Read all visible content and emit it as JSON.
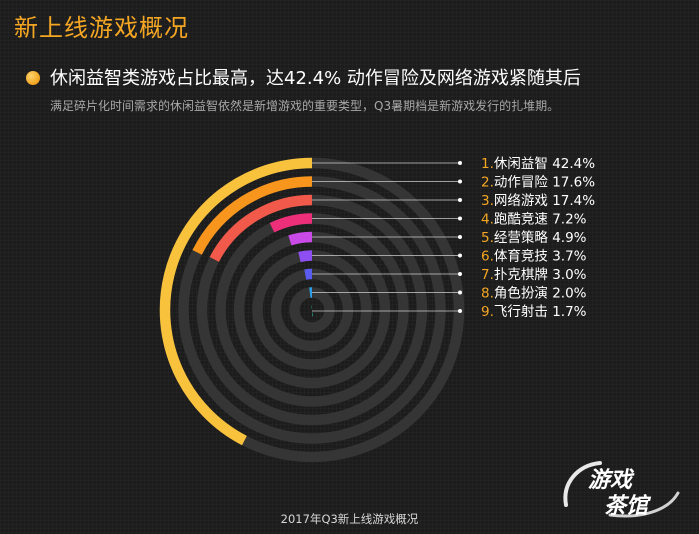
{
  "header": {
    "title": "新上线游戏概况",
    "headline": "休闲益智类游戏占比最高，达42.4%  动作冒险及网络游戏紧随其后",
    "subline": "满足碎片化时间需求的休闲益智依然是新增游戏的重要类型，Q3暑期档是新游戏发行的扎堆期。"
  },
  "footer": "2017年Q3新上线游戏概况",
  "watermark": {
    "line1": "游戏",
    "line2": "茶馆"
  },
  "colors": {
    "track": "#353535",
    "index": "#f5a623",
    "text": "#ffffff",
    "connector": "#cccccc"
  },
  "chart_data": {
    "type": "radial-bar",
    "unit": "%",
    "max": 100,
    "categories": [
      "休闲益智",
      "动作冒险",
      "网络游戏",
      "跑酷竞速",
      "经营策略",
      "体育竞技",
      "扑克棋牌",
      "角色扮演",
      "飞行射击"
    ],
    "values": [
      42.4,
      17.6,
      17.4,
      7.2,
      4.9,
      3.7,
      3.0,
      2.0,
      1.7
    ],
    "labels": [
      "42.4%",
      "17.6%",
      "17.4%",
      "7.2%",
      "4.9%",
      "3.7%",
      "3.0%",
      "2.0%",
      "1.7%"
    ],
    "indices": [
      "1.",
      "2.",
      "3.",
      "4.",
      "5.",
      "6.",
      "7.",
      "8.",
      "9."
    ],
    "colors": [
      "#f9c23c",
      "#f7951d",
      "#f15a4a",
      "#ec2f78",
      "#c94ae6",
      "#8d4ef2",
      "#5a5cf0",
      "#2a9ee6",
      "#22c7a6"
    ]
  }
}
